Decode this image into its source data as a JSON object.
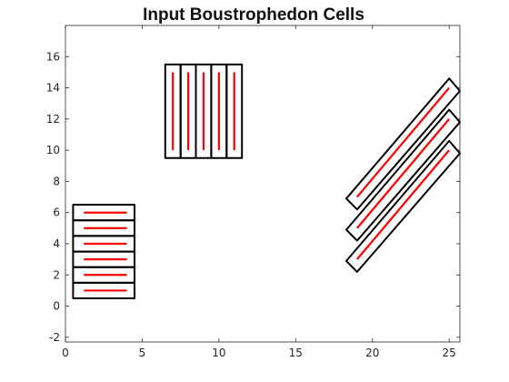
{
  "chart_data": {
    "type": "line",
    "title": "Input Boustrophedon Cells",
    "xlabel": "",
    "ylabel": "",
    "xlim": [
      0,
      25.7
    ],
    "ylim": [
      -2.3,
      18
    ],
    "xticks": [
      0,
      5,
      10,
      15,
      20,
      25
    ],
    "yticks": [
      -2,
      0,
      2,
      4,
      6,
      8,
      10,
      12,
      14,
      16
    ],
    "grid": false,
    "colors": {
      "cell_outline": "#000000",
      "sweep_line": "#ff0000",
      "axes": "#262626"
    },
    "cells": [
      {
        "group": "horizontal",
        "polygon": [
          [
            0.5,
            0.5
          ],
          [
            4.5,
            0.5
          ],
          [
            4.5,
            1.5
          ],
          [
            0.5,
            1.5
          ]
        ],
        "sweep": [
          [
            1.2,
            1
          ],
          [
            4,
            1
          ]
        ]
      },
      {
        "group": "horizontal",
        "polygon": [
          [
            0.5,
            1.5
          ],
          [
            4.5,
            1.5
          ],
          [
            4.5,
            2.5
          ],
          [
            0.5,
            2.5
          ]
        ],
        "sweep": [
          [
            1.2,
            2
          ],
          [
            4,
            2
          ]
        ]
      },
      {
        "group": "horizontal",
        "polygon": [
          [
            0.5,
            2.5
          ],
          [
            4.5,
            2.5
          ],
          [
            4.5,
            3.5
          ],
          [
            0.5,
            3.5
          ]
        ],
        "sweep": [
          [
            1.2,
            3
          ],
          [
            4,
            3
          ]
        ]
      },
      {
        "group": "horizontal",
        "polygon": [
          [
            0.5,
            3.5
          ],
          [
            4.5,
            3.5
          ],
          [
            4.5,
            4.5
          ],
          [
            0.5,
            4.5
          ]
        ],
        "sweep": [
          [
            1.2,
            4
          ],
          [
            4,
            4
          ]
        ]
      },
      {
        "group": "horizontal",
        "polygon": [
          [
            0.5,
            4.5
          ],
          [
            4.5,
            4.5
          ],
          [
            4.5,
            5.5
          ],
          [
            0.5,
            5.5
          ]
        ],
        "sweep": [
          [
            1.2,
            5
          ],
          [
            4,
            5
          ]
        ]
      },
      {
        "group": "horizontal",
        "polygon": [
          [
            0.5,
            5.5
          ],
          [
            4.5,
            5.5
          ],
          [
            4.5,
            6.5
          ],
          [
            0.5,
            6.5
          ]
        ],
        "sweep": [
          [
            1.2,
            6
          ],
          [
            4,
            6
          ]
        ]
      },
      {
        "group": "vertical",
        "polygon": [
          [
            6.5,
            9.5
          ],
          [
            7.5,
            9.5
          ],
          [
            7.5,
            15.5
          ],
          [
            6.5,
            15.5
          ]
        ],
        "sweep": [
          [
            7,
            10
          ],
          [
            7,
            15
          ]
        ]
      },
      {
        "group": "vertical",
        "polygon": [
          [
            7.5,
            9.5
          ],
          [
            8.5,
            9.5
          ],
          [
            8.5,
            15.5
          ],
          [
            7.5,
            15.5
          ]
        ],
        "sweep": [
          [
            8,
            10
          ],
          [
            8,
            15
          ]
        ]
      },
      {
        "group": "vertical",
        "polygon": [
          [
            8.5,
            9.5
          ],
          [
            9.5,
            9.5
          ],
          [
            9.5,
            15.5
          ],
          [
            8.5,
            15.5
          ]
        ],
        "sweep": [
          [
            9,
            10
          ],
          [
            9,
            15
          ]
        ]
      },
      {
        "group": "vertical",
        "polygon": [
          [
            9.5,
            9.5
          ],
          [
            10.5,
            9.5
          ],
          [
            10.5,
            15.5
          ],
          [
            9.5,
            15.5
          ]
        ],
        "sweep": [
          [
            10,
            10
          ],
          [
            10,
            15
          ]
        ]
      },
      {
        "group": "vertical",
        "polygon": [
          [
            10.5,
            9.5
          ],
          [
            11.5,
            9.5
          ],
          [
            11.5,
            15.5
          ],
          [
            10.5,
            15.5
          ]
        ],
        "sweep": [
          [
            11,
            10
          ],
          [
            11,
            15
          ]
        ]
      },
      {
        "group": "diagonal",
        "polygon": [
          [
            18.3,
            2.9
          ],
          [
            19,
            2.2
          ],
          [
            25.7,
            9.8
          ],
          [
            25,
            10.6
          ]
        ],
        "sweep": [
          [
            19,
            3
          ],
          [
            25,
            10
          ]
        ]
      },
      {
        "group": "diagonal",
        "polygon": [
          [
            18.3,
            4.9
          ],
          [
            19,
            4.2
          ],
          [
            25.7,
            11.8
          ],
          [
            25,
            12.6
          ]
        ],
        "sweep": [
          [
            19,
            5
          ],
          [
            25,
            12
          ]
        ]
      },
      {
        "group": "diagonal",
        "polygon": [
          [
            18.3,
            6.9
          ],
          [
            19,
            6.2
          ],
          [
            25.7,
            13.8
          ],
          [
            25,
            14.6
          ]
        ],
        "sweep": [
          [
            19,
            7
          ],
          [
            25,
            14
          ]
        ]
      }
    ]
  }
}
